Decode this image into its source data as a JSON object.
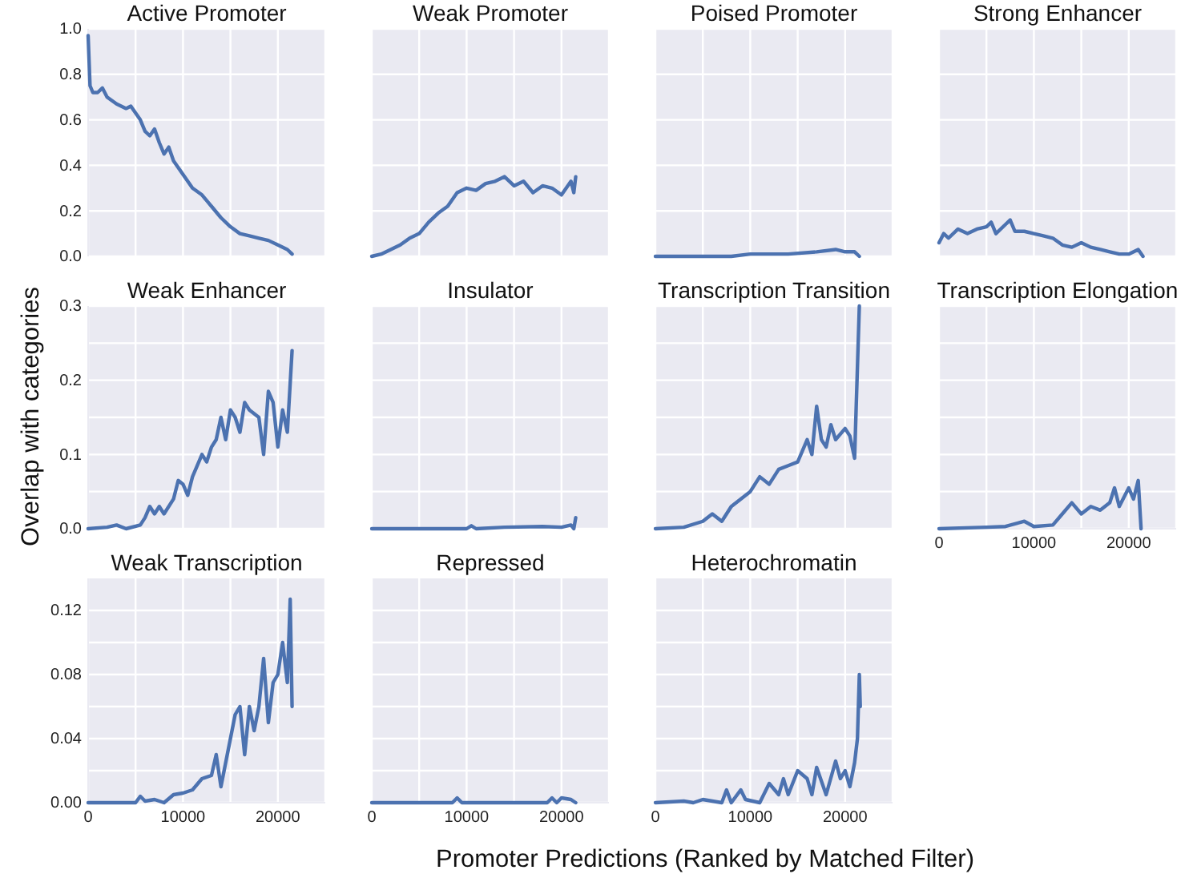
{
  "chart_data": [
    {
      "type": "line",
      "title": "Active Promoter",
      "color": "#4c72b0",
      "grid": true,
      "tick_labels": "y",
      "xlim": [
        0,
        25000
      ],
      "ylim": [
        0,
        1
      ],
      "xticks": [
        0,
        5000,
        10000,
        15000,
        20000,
        25000
      ],
      "yticks": [
        {
          "value": 0,
          "label": "0.0"
        },
        {
          "value": 0.2,
          "label": "0.2"
        },
        {
          "value": 0.4,
          "label": "0.4"
        },
        {
          "value": 0.6,
          "label": "0.6"
        },
        {
          "value": 0.8,
          "label": "0.8"
        },
        {
          "value": 1,
          "label": "1.0"
        }
      ],
      "x": [
        0,
        200,
        500,
        1000,
        1500,
        2000,
        3000,
        4000,
        4500,
        5000,
        5500,
        6000,
        6500,
        7000,
        7500,
        8000,
        8500,
        9000,
        9500,
        10000,
        11000,
        12000,
        13000,
        14000,
        15000,
        16000,
        17000,
        18000,
        19000,
        20000,
        21000,
        21500
      ],
      "values": [
        0.97,
        0.75,
        0.72,
        0.72,
        0.74,
        0.7,
        0.67,
        0.65,
        0.66,
        0.63,
        0.6,
        0.55,
        0.53,
        0.56,
        0.5,
        0.45,
        0.48,
        0.42,
        0.39,
        0.36,
        0.3,
        0.27,
        0.22,
        0.17,
        0.13,
        0.1,
        0.09,
        0.08,
        0.07,
        0.05,
        0.03,
        0.01
      ]
    },
    {
      "type": "line",
      "title": "Weak Promoter",
      "color": "#4c72b0",
      "grid": true,
      "tick_labels": false,
      "xlim": [
        0,
        25000
      ],
      "ylim": [
        0,
        1
      ],
      "xticks": [
        0,
        5000,
        10000,
        15000,
        20000,
        25000
      ],
      "yticks": [
        0,
        0.2,
        0.4,
        0.6,
        0.8,
        1
      ],
      "x": [
        0,
        1000,
        2000,
        3000,
        4000,
        5000,
        6000,
        7000,
        8000,
        9000,
        10000,
        11000,
        12000,
        13000,
        14000,
        15000,
        16000,
        17000,
        18000,
        19000,
        20000,
        21000,
        21300,
        21500
      ],
      "values": [
        0,
        0.01,
        0.03,
        0.05,
        0.08,
        0.1,
        0.15,
        0.19,
        0.22,
        0.28,
        0.3,
        0.29,
        0.32,
        0.33,
        0.35,
        0.31,
        0.33,
        0.28,
        0.31,
        0.3,
        0.27,
        0.33,
        0.28,
        0.35
      ]
    },
    {
      "type": "line",
      "title": "Poised Promoter",
      "color": "#4c72b0",
      "grid": true,
      "tick_labels": false,
      "xlim": [
        0,
        25000
      ],
      "ylim": [
        0,
        1
      ],
      "xticks": [
        0,
        5000,
        10000,
        15000,
        20000,
        25000
      ],
      "yticks": [
        0,
        0.2,
        0.4,
        0.6,
        0.8,
        1
      ],
      "x": [
        0,
        8000,
        10000,
        14000,
        17000,
        19000,
        20000,
        21000,
        21500
      ],
      "values": [
        0,
        0,
        0.01,
        0.01,
        0.02,
        0.03,
        0.02,
        0.02,
        0
      ]
    },
    {
      "type": "line",
      "title": "Strong Enhancer",
      "color": "#4c72b0",
      "grid": true,
      "tick_labels": false,
      "xlim": [
        0,
        25000
      ],
      "ylim": [
        0,
        1
      ],
      "xticks": [
        0,
        5000,
        10000,
        15000,
        20000,
        25000
      ],
      "yticks": [
        0,
        0.2,
        0.4,
        0.6,
        0.8,
        1
      ],
      "x": [
        0,
        500,
        1000,
        2000,
        3000,
        4000,
        5000,
        5500,
        6000,
        7000,
        7500,
        8000,
        9000,
        10000,
        11000,
        12000,
        13000,
        14000,
        15000,
        16000,
        17000,
        18000,
        19000,
        20000,
        21000,
        21500
      ],
      "values": [
        0.06,
        0.1,
        0.08,
        0.12,
        0.1,
        0.12,
        0.13,
        0.15,
        0.1,
        0.14,
        0.16,
        0.11,
        0.11,
        0.1,
        0.09,
        0.08,
        0.05,
        0.04,
        0.06,
        0.04,
        0.03,
        0.02,
        0.01,
        0.01,
        0.03,
        0
      ]
    },
    {
      "type": "line",
      "title": "Weak Enhancer",
      "ylabel": "Overlap with categories",
      "color": "#4c72b0",
      "grid": true,
      "tick_labels": "y",
      "xlim": [
        0,
        25000
      ],
      "ylim": [
        0,
        0.3
      ],
      "xticks": [
        0,
        5000,
        10000,
        15000,
        20000,
        25000
      ],
      "yticks": [
        {
          "value": 0,
          "label": "0.0"
        },
        {
          "value": 0.05,
          "label": null
        },
        {
          "value": 0.1,
          "label": "0.1"
        },
        {
          "value": 0.15,
          "label": null
        },
        {
          "value": 0.2,
          "label": "0.2"
        },
        {
          "value": 0.25,
          "label": null
        },
        {
          "value": 0.3,
          "label": "0.3"
        }
      ],
      "x": [
        0,
        2000,
        3000,
        4000,
        5500,
        6000,
        6500,
        7000,
        7500,
        8000,
        9000,
        9500,
        10000,
        10500,
        11000,
        12000,
        12500,
        13000,
        13500,
        14000,
        14500,
        15000,
        15500,
        16000,
        16500,
        17000,
        18000,
        18500,
        19000,
        19500,
        20000,
        20500,
        21000,
        21500
      ],
      "values": [
        0,
        0.002,
        0.005,
        0,
        0.005,
        0.015,
        0.03,
        0.02,
        0.03,
        0.02,
        0.04,
        0.065,
        0.06,
        0.045,
        0.07,
        0.1,
        0.09,
        0.11,
        0.12,
        0.15,
        0.12,
        0.16,
        0.15,
        0.13,
        0.17,
        0.16,
        0.15,
        0.1,
        0.185,
        0.17,
        0.11,
        0.16,
        0.13,
        0.24
      ]
    },
    {
      "type": "line",
      "title": "Insulator",
      "color": "#4c72b0",
      "grid": true,
      "tick_labels": false,
      "xlim": [
        0,
        25000
      ],
      "ylim": [
        0,
        0.3
      ],
      "xticks": [
        0,
        5000,
        10000,
        15000,
        20000,
        25000
      ],
      "yticks": [
        0,
        0.05,
        0.1,
        0.15,
        0.2,
        0.25,
        0.3
      ],
      "x": [
        0,
        10000,
        10500,
        11000,
        14000,
        18000,
        20000,
        21000,
        21300,
        21500
      ],
      "values": [
        0,
        0,
        0.004,
        0,
        0.002,
        0.003,
        0.002,
        0.005,
        0,
        0.015
      ]
    },
    {
      "type": "line",
      "title": "Transcription Transition",
      "color": "#4c72b0",
      "grid": true,
      "tick_labels": false,
      "xlim": [
        0,
        25000
      ],
      "ylim": [
        0,
        0.3
      ],
      "xticks": [
        0,
        5000,
        10000,
        15000,
        20000,
        25000
      ],
      "yticks": [
        0,
        0.05,
        0.1,
        0.15,
        0.2,
        0.25,
        0.3
      ],
      "x": [
        0,
        3000,
        5000,
        6000,
        7000,
        8000,
        9000,
        10000,
        11000,
        12000,
        13000,
        14000,
        15000,
        16000,
        16500,
        17000,
        17500,
        18000,
        18500,
        19000,
        20000,
        20500,
        21000,
        21500
      ],
      "values": [
        0,
        0.002,
        0.01,
        0.02,
        0.01,
        0.03,
        0.04,
        0.05,
        0.07,
        0.06,
        0.08,
        0.085,
        0.09,
        0.12,
        0.1,
        0.165,
        0.12,
        0.11,
        0.14,
        0.12,
        0.135,
        0.125,
        0.095,
        0.3
      ]
    },
    {
      "type": "line",
      "title": "Transcription Elongation",
      "color": "#4c72b0",
      "grid": true,
      "tick_labels": "x",
      "xlim": [
        0,
        25000
      ],
      "ylim": [
        0,
        0.3
      ],
      "xticks": [
        0,
        {
          "value": 5000,
          "label": null
        },
        10000,
        {
          "value": 15000,
          "label": null
        },
        20000,
        {
          "value": 25000,
          "label": null
        }
      ],
      "yticks": [
        0,
        0.05,
        0.1,
        0.15,
        0.2,
        0.25,
        0.3
      ],
      "x": [
        0,
        5000,
        7000,
        9000,
        10000,
        12000,
        13000,
        14000,
        15000,
        16000,
        17000,
        18000,
        18500,
        19000,
        20000,
        20500,
        21000,
        21300
      ],
      "values": [
        0,
        0.002,
        0.003,
        0.01,
        0.003,
        0.005,
        0.02,
        0.035,
        0.02,
        0.03,
        0.025,
        0.035,
        0.055,
        0.03,
        0.055,
        0.04,
        0.065,
        0
      ]
    },
    {
      "type": "line",
      "title": "Weak Transcription",
      "color": "#4c72b0",
      "grid": true,
      "xlim": [
        0,
        25000
      ],
      "ylim": [
        0,
        0.14
      ],
      "xticks": [
        0,
        {
          "value": 5000,
          "label": null
        },
        10000,
        {
          "value": 15000,
          "label": null
        },
        20000,
        {
          "value": 25000,
          "label": null
        }
      ],
      "yticks": [
        {
          "value": 0,
          "label": "0.00"
        },
        {
          "value": 0.02,
          "label": null
        },
        {
          "value": 0.04,
          "label": "0.04"
        },
        {
          "value": 0.06,
          "label": null
        },
        {
          "value": 0.08,
          "label": "0.08"
        },
        {
          "value": 0.1,
          "label": null
        },
        {
          "value": 0.12,
          "label": "0.12"
        }
      ],
      "x": [
        0,
        5000,
        5500,
        6000,
        7000,
        8000,
        9000,
        10000,
        11000,
        12000,
        13000,
        13500,
        14000,
        14500,
        15000,
        15500,
        16000,
        16500,
        17000,
        17500,
        18000,
        18500,
        19000,
        19500,
        20000,
        20500,
        21000,
        21300,
        21500
      ],
      "values": [
        0,
        0,
        0.004,
        0.001,
        0.002,
        0,
        0.005,
        0.006,
        0.008,
        0.015,
        0.017,
        0.03,
        0.01,
        0.025,
        0.04,
        0.055,
        0.06,
        0.03,
        0.06,
        0.045,
        0.06,
        0.09,
        0.05,
        0.075,
        0.08,
        0.1,
        0.075,
        0.127,
        0.06
      ]
    },
    {
      "type": "line",
      "title": "Repressed",
      "xlabel": "Promoter Predictions (Ranked by Matched Filter)",
      "color": "#4c72b0",
      "grid": true,
      "tick_labels": "x",
      "xlim": [
        0,
        25000
      ],
      "ylim": [
        0,
        0.14
      ],
      "xticks": [
        0,
        {
          "value": 5000,
          "label": null
        },
        10000,
        {
          "value": 15000,
          "label": null
        },
        20000,
        {
          "value": 25000,
          "label": null
        }
      ],
      "yticks": [
        0,
        0.02,
        0.04,
        0.06,
        0.08,
        0.1,
        0.12
      ],
      "x": [
        0,
        8500,
        9000,
        9500,
        18500,
        19000,
        19500,
        20000,
        21000,
        21500
      ],
      "values": [
        0,
        0,
        0.003,
        0,
        0,
        0.003,
        0,
        0.003,
        0.002,
        0
      ]
    },
    {
      "type": "line",
      "title": "Heterochromatin",
      "color": "#4c72b0",
      "grid": true,
      "tick_labels": "x",
      "xlim": [
        0,
        25000
      ],
      "ylim": [
        0,
        0.14
      ],
      "xticks": [
        0,
        {
          "value": 5000,
          "label": null
        },
        10000,
        {
          "value": 15000,
          "label": null
        },
        20000,
        {
          "value": 25000,
          "label": null
        }
      ],
      "yticks": [
        0,
        0.02,
        0.04,
        0.06,
        0.08,
        0.1,
        0.12
      ],
      "x": [
        0,
        3000,
        4000,
        5000,
        7000,
        7500,
        8000,
        9000,
        9500,
        11000,
        12000,
        13000,
        13500,
        14000,
        15000,
        16000,
        16500,
        17000,
        18000,
        19000,
        19500,
        20000,
        20500,
        21000,
        21300,
        21500,
        21600
      ],
      "values": [
        0,
        0.001,
        0,
        0.002,
        0,
        0.008,
        0,
        0.008,
        0.002,
        0,
        0.012,
        0.005,
        0.015,
        0.005,
        0.02,
        0.015,
        0.005,
        0.022,
        0.005,
        0.026,
        0.015,
        0.02,
        0.01,
        0.025,
        0.04,
        0.08,
        0.06
      ]
    }
  ]
}
